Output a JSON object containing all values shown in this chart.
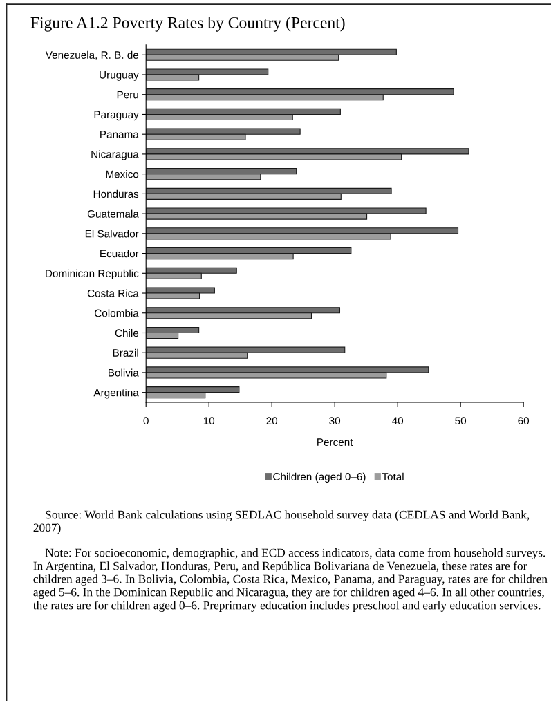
{
  "chart_data": {
    "type": "bar",
    "orientation": "horizontal",
    "title": "Figure A1.2 Poverty Rates by Country (Percent)",
    "xlabel": "Percent",
    "categories": [
      "Venezuela, R. B. de",
      "Uruguay",
      "Peru",
      "Paraguay",
      "Panama",
      "Nicaragua",
      "Mexico",
      "Honduras",
      "Guatemala",
      "El Salvador",
      "Ecuador",
      "Dominican Republic",
      "Costa Rica",
      "Colombia",
      "Chile",
      "Brazil",
      "Bolivia",
      "Argentina"
    ],
    "series": [
      {
        "name": "Children (aged 0–6)",
        "color": "#6d6d6d",
        "values": [
          39.8,
          19.4,
          48.9,
          30.9,
          24.5,
          51.3,
          23.9,
          39.0,
          44.5,
          49.6,
          32.6,
          14.4,
          10.9,
          30.8,
          8.4,
          31.6,
          44.9,
          14.8
        ]
      },
      {
        "name": "Total",
        "color": "#9c9c9c",
        "values": [
          30.6,
          8.4,
          37.7,
          23.3,
          15.8,
          40.6,
          18.2,
          31.0,
          35.1,
          38.9,
          23.4,
          8.8,
          8.5,
          26.3,
          5.1,
          16.1,
          38.2,
          9.4
        ]
      }
    ],
    "xlim": [
      0,
      60
    ],
    "xticks": [
      0,
      10,
      20,
      30,
      40,
      50,
      60
    ],
    "grid": false,
    "legend": "bottom",
    "annotations": [
      "Source: World Bank calculations using SEDLAC household survey data (CEDLAS and World Bank, 2007)",
      "Note: For socioeconomic, demographic, and ECD access indicators, data come from household surveys. In Argentina, El Salvador, Honduras, Peru, and República Bolivariana de Venezuela, these rates are for children aged 3–6. In Bolivia, Colombia, Costa Rica, Mexico, Panama, and Paraguay, rates are for children aged 5–6. In the Dominican Republic and Nicaragua, they are for children aged 4–6. In all other countries, the rates are for children aged 0–6. Preprimary education includes preschool and early education services."
    ]
  }
}
